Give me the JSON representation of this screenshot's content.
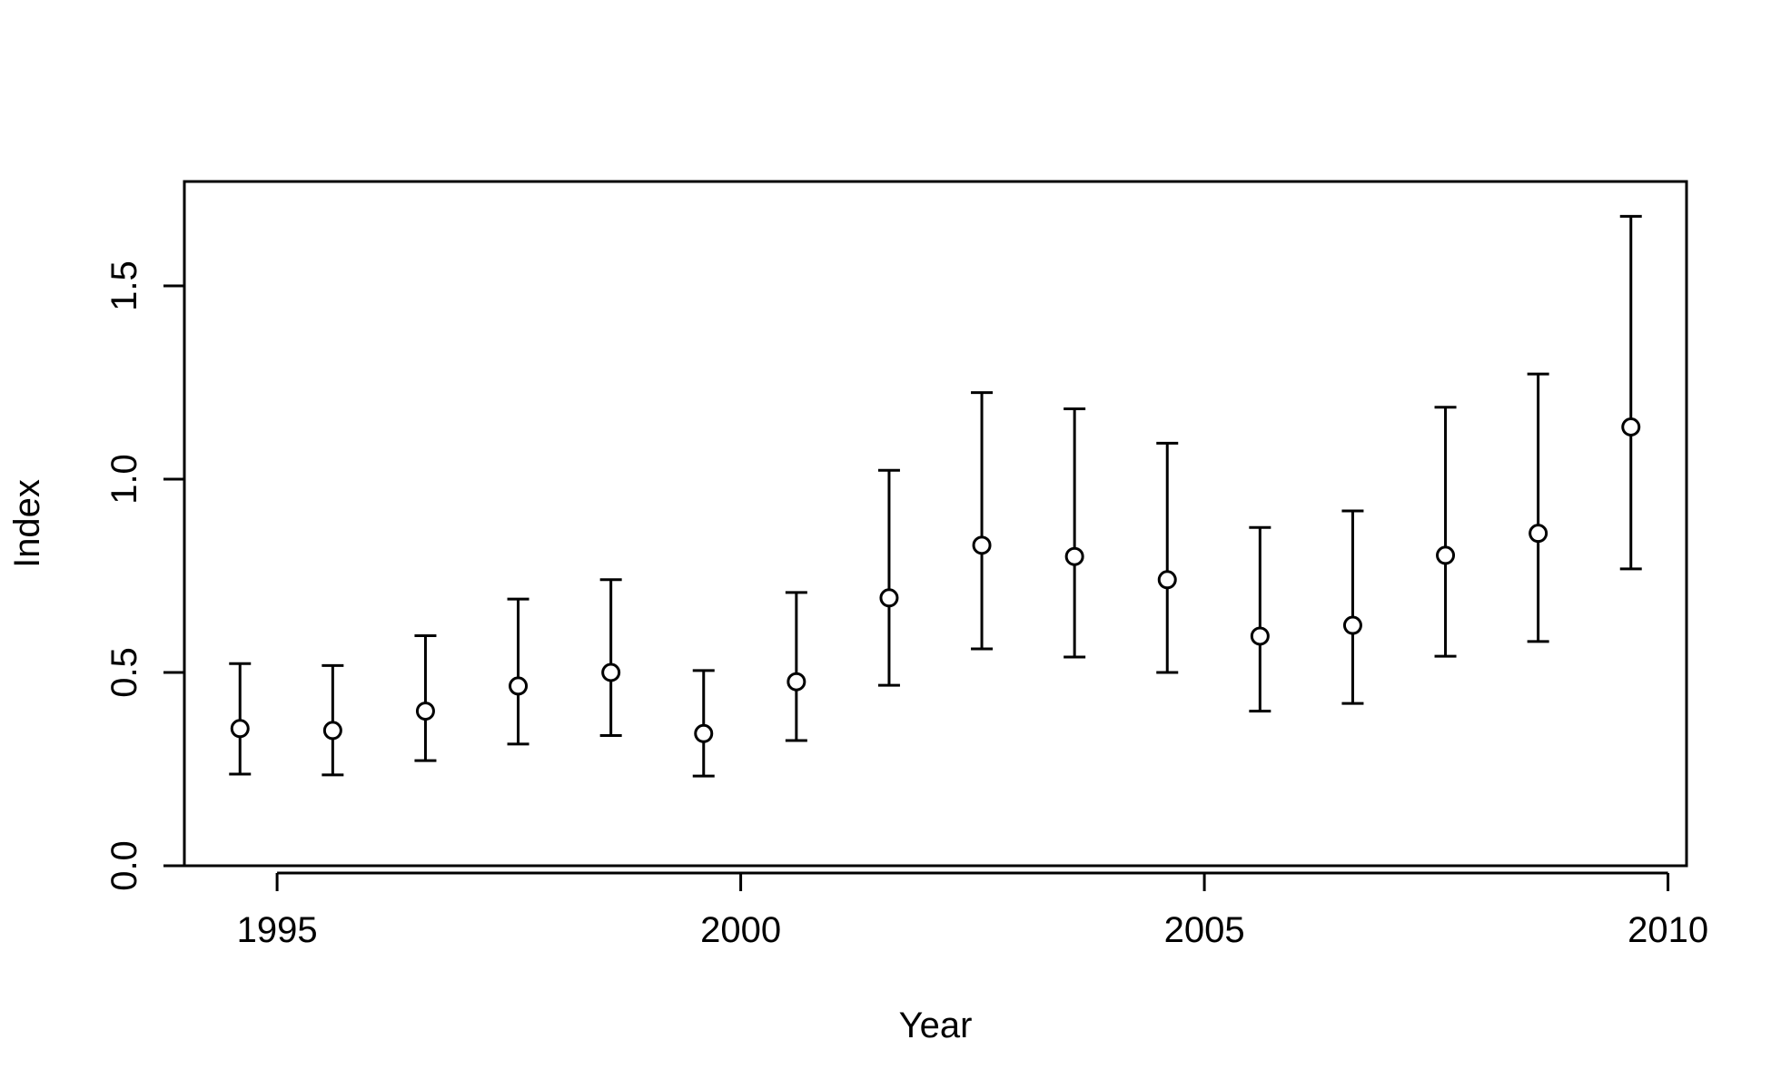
{
  "chart_data": {
    "type": "scatter",
    "xlabel": "Year",
    "ylabel": "Index",
    "xlim": [
      1994,
      2010.2
    ],
    "ylim": [
      0,
      1.77
    ],
    "x_ticks": [
      1995,
      2000,
      2005,
      2010
    ],
    "x_tick_labels": [
      "1995",
      "2000",
      "2005",
      "2010"
    ],
    "y_ticks": [
      0,
      0.5,
      1,
      1.5
    ],
    "y_tick_labels": [
      "0.0",
      "0.5",
      "1.0",
      "1.5"
    ],
    "grid": false,
    "frame": true,
    "marker": "open-circle",
    "series": [
      {
        "x": [
          1994.6,
          1995.6,
          1996.6,
          1997.6,
          1998.6,
          1999.6,
          2000.6,
          2001.6,
          2002.6,
          2003.6,
          2004.6,
          2005.6,
          2006.6,
          2007.6,
          2008.6,
          2009.6
        ],
        "y": [
          0.355,
          0.35,
          0.4,
          0.465,
          0.5,
          0.342,
          0.476,
          0.693,
          0.829,
          0.8,
          0.74,
          0.594,
          0.622,
          0.803,
          0.86,
          1.135
        ],
        "lower": [
          0.237,
          0.235,
          0.272,
          0.315,
          0.337,
          0.232,
          0.324,
          0.467,
          0.561,
          0.54,
          0.5,
          0.4,
          0.42,
          0.542,
          0.58,
          0.768
        ],
        "upper": [
          0.523,
          0.518,
          0.595,
          0.69,
          0.74,
          0.505,
          0.707,
          1.023,
          1.224,
          1.182,
          1.093,
          0.875,
          0.918,
          1.186,
          1.272,
          1.68
        ]
      }
    ]
  }
}
